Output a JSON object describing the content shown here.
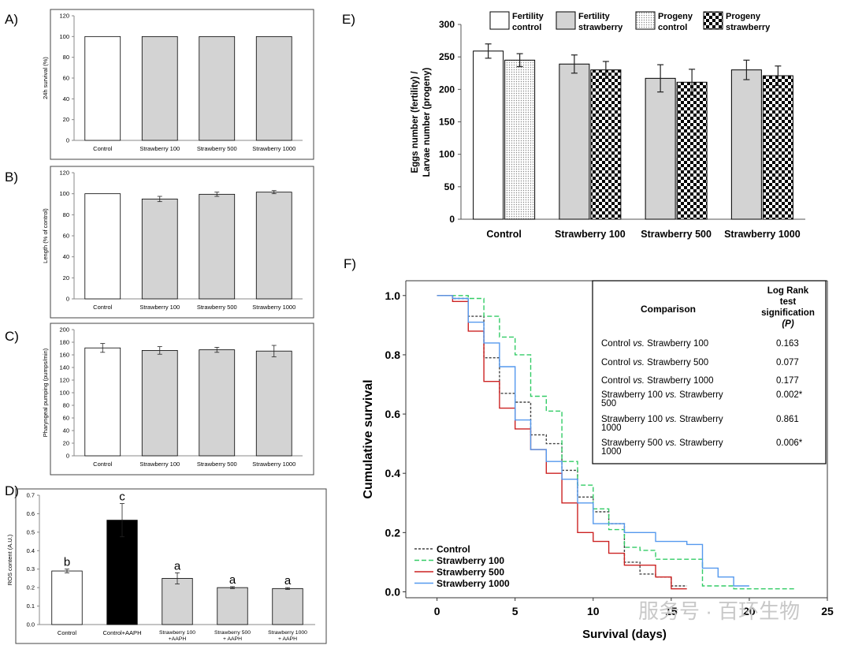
{
  "watermark": "服务号 · 百环生物",
  "chart_data": [
    {
      "panel": "A)",
      "type": "bar",
      "ylabel": "24h survival (%)",
      "categories": [
        "Control",
        "Strawberry 100",
        "Strawberry 500",
        "Strawberry 1000"
      ],
      "values": [
        100,
        100,
        100,
        100
      ],
      "errors": [
        0,
        0,
        0,
        0
      ],
      "ylim": [
        0,
        120
      ],
      "yticks": [
        "0",
        "20",
        "40",
        "60",
        "80",
        "100",
        "120"
      ],
      "colors": [
        "#ffffff",
        "#d3d3d3",
        "#d3d3d3",
        "#d3d3d3"
      ]
    },
    {
      "panel": "B)",
      "type": "bar",
      "ylabel": "Length (% of control)",
      "categories": [
        "Control",
        "Strawberry 100",
        "Strawberry 500",
        "Strawberry 1000"
      ],
      "values": [
        100,
        95,
        99.5,
        101.5
      ],
      "errors": [
        0,
        2.5,
        2,
        1.5
      ],
      "ylim": [
        0,
        120
      ],
      "yticks": [
        "0",
        "20",
        "40",
        "60",
        "80",
        "100",
        "120"
      ],
      "colors": [
        "#ffffff",
        "#d3d3d3",
        "#d3d3d3",
        "#d3d3d3"
      ]
    },
    {
      "panel": "C)",
      "type": "bar",
      "ylabel": "Pharyngeal pumping (pumps/min)",
      "categories": [
        "Control",
        "Strawberry 100",
        "Strawberry 500",
        "Strawberry 1000"
      ],
      "values": [
        171,
        167,
        168,
        166
      ],
      "errors": [
        7,
        6,
        4,
        9
      ],
      "ylim": [
        0,
        200
      ],
      "yticks": [
        "0",
        "20",
        "40",
        "60",
        "80",
        "100",
        "120",
        "140",
        "160",
        "180",
        "200"
      ],
      "colors": [
        "#ffffff",
        "#d3d3d3",
        "#d3d3d3",
        "#d3d3d3"
      ]
    },
    {
      "panel": "D)",
      "type": "bar",
      "ylabel": "ROS content (A.U.)",
      "categories": [
        "Control",
        "Control+AAPH",
        "Strawberry 100 +AAPH",
        "Strawberry 500 + AAPH",
        "Strawberry 1000 + AAPH"
      ],
      "values": [
        0.29,
        0.565,
        0.25,
        0.2,
        0.195
      ],
      "errors": [
        0.01,
        0.09,
        0.03,
        0.005,
        0.005
      ],
      "letters": [
        "b",
        "c",
        "a",
        "a",
        "a"
      ],
      "ylim": [
        0,
        0.7
      ],
      "yticks": [
        "0.0",
        "0.1",
        "0.2",
        "0.3",
        "0.4",
        "0.5",
        "0.6",
        "0.7"
      ],
      "colors": [
        "#ffffff",
        "#000000",
        "#d3d3d3",
        "#d3d3d3",
        "#d3d3d3"
      ]
    },
    {
      "panel": "E)",
      "type": "bar",
      "ylabel": "Eggs number (fertility) / Larvae number (progeny)",
      "categories": [
        "Control",
        "Strawberry 100",
        "Strawberry 500",
        "Strawberry 1000"
      ],
      "series": [
        {
          "name": "Fertility control / Fertility strawberry",
          "values": [
            259,
            239,
            217,
            230
          ],
          "errors": [
            11,
            14,
            21,
            15
          ]
        },
        {
          "name": "Progeny control / Progeny strawberry",
          "values": [
            245,
            230,
            211,
            221
          ],
          "errors": [
            10,
            13,
            20,
            15
          ]
        }
      ],
      "legend": [
        "Fertility control",
        "Fertility strawberry",
        "Progeny control",
        "Progeny strawberry"
      ],
      "ylim": [
        0,
        300
      ],
      "yticks": [
        "0",
        "50",
        "100",
        "150",
        "200",
        "250",
        "300"
      ]
    },
    {
      "panel": "F)",
      "type": "line",
      "xlabel": "Survival (days)",
      "ylabel": "Cumulative survival",
      "xlim": [
        -2,
        25
      ],
      "ylim": [
        -0.02,
        1.05
      ],
      "xticks": [
        "0",
        "5",
        "10",
        "15",
        "20",
        "25"
      ],
      "yticks": [
        "0.0",
        "0.2",
        "0.4",
        "0.6",
        "0.8",
        "1.0"
      ],
      "series": [
        {
          "name": "Control",
          "color": "#444444",
          "dash": "3,2",
          "x": [
            0,
            1,
            1,
            2,
            2,
            3,
            3,
            4,
            4,
            5,
            5,
            6,
            6,
            7,
            7,
            8,
            8,
            9,
            9,
            10,
            10,
            11,
            11,
            12,
            12,
            13,
            13,
            14,
            14,
            15,
            15,
            16
          ],
          "y": [
            1,
            1,
            0.99,
            0.99,
            0.93,
            0.93,
            0.79,
            0.79,
            0.67,
            0.67,
            0.64,
            0.64,
            0.53,
            0.53,
            0.5,
            0.5,
            0.41,
            0.41,
            0.32,
            0.32,
            0.27,
            0.27,
            0.23,
            0.23,
            0.1,
            0.1,
            0.06,
            0.06,
            0.05,
            0.05,
            0.02,
            0.02
          ]
        },
        {
          "name": "Strawberry 100",
          "color": "#33cc66",
          "dash": "6,3",
          "x": [
            0,
            2,
            2,
            3,
            3,
            4,
            4,
            5,
            5,
            6,
            6,
            7,
            7,
            8,
            8,
            9,
            9,
            10,
            10,
            11,
            11,
            12,
            12,
            13,
            13,
            14,
            14,
            17,
            17,
            19,
            19,
            23
          ],
          "y": [
            1,
            1,
            0.99,
            0.99,
            0.93,
            0.93,
            0.86,
            0.86,
            0.8,
            0.8,
            0.66,
            0.66,
            0.61,
            0.61,
            0.44,
            0.44,
            0.36,
            0.36,
            0.28,
            0.28,
            0.21,
            0.21,
            0.15,
            0.15,
            0.14,
            0.14,
            0.11,
            0.11,
            0.02,
            0.02,
            0.01,
            0.01
          ]
        },
        {
          "name": "Strawberry 500",
          "color": "#cc2222",
          "dash": "",
          "x": [
            0,
            1,
            1,
            2,
            2,
            3,
            3,
            4,
            4,
            5,
            5,
            6,
            6,
            7,
            7,
            8,
            8,
            9,
            9,
            10,
            10,
            11,
            11,
            12,
            12,
            14,
            14,
            15,
            15,
            16
          ],
          "y": [
            1,
            1,
            0.98,
            0.98,
            0.88,
            0.88,
            0.71,
            0.71,
            0.62,
            0.62,
            0.55,
            0.55,
            0.48,
            0.48,
            0.4,
            0.4,
            0.3,
            0.3,
            0.2,
            0.2,
            0.17,
            0.17,
            0.13,
            0.13,
            0.09,
            0.09,
            0.05,
            0.05,
            0.01,
            0.01
          ]
        },
        {
          "name": "Strawberry 1000",
          "color": "#5599ee",
          "dash": "",
          "x": [
            0,
            1,
            1,
            2,
            2,
            3,
            3,
            4,
            4,
            5,
            5,
            6,
            6,
            7,
            7,
            8,
            8,
            9,
            9,
            10,
            10,
            12,
            12,
            14,
            14,
            16,
            16,
            17,
            17,
            18,
            18,
            19,
            19,
            20
          ],
          "y": [
            1,
            1,
            0.99,
            0.99,
            0.91,
            0.91,
            0.84,
            0.84,
            0.76,
            0.76,
            0.58,
            0.58,
            0.48,
            0.48,
            0.44,
            0.44,
            0.38,
            0.38,
            0.3,
            0.3,
            0.23,
            0.23,
            0.2,
            0.2,
            0.17,
            0.17,
            0.16,
            0.16,
            0.08,
            0.08,
            0.05,
            0.05,
            0.02,
            0.02
          ]
        }
      ],
      "table": {
        "header_comparison": "Comparison",
        "header_pvalue": [
          "Log Rank",
          "test",
          "signification",
          "(P)"
        ],
        "rows": [
          {
            "comparison": "Control vs. Strawberry 100",
            "p": "0.163"
          },
          {
            "comparison": "Control vs. Strawberry 500",
            "p": "0.077"
          },
          {
            "comparison": "Control vs. Strawberry 1000",
            "p": "0.177"
          },
          {
            "comparison": "Strawberry 100 vs. Strawberry 500",
            "p": "0.002*"
          },
          {
            "comparison": "Strawberry 100 vs. Strawberry 1000",
            "p": "0.861"
          },
          {
            "comparison": "Strawberry 500 vs. Strawberry 1000",
            "p": "0.006*"
          }
        ]
      }
    }
  ]
}
